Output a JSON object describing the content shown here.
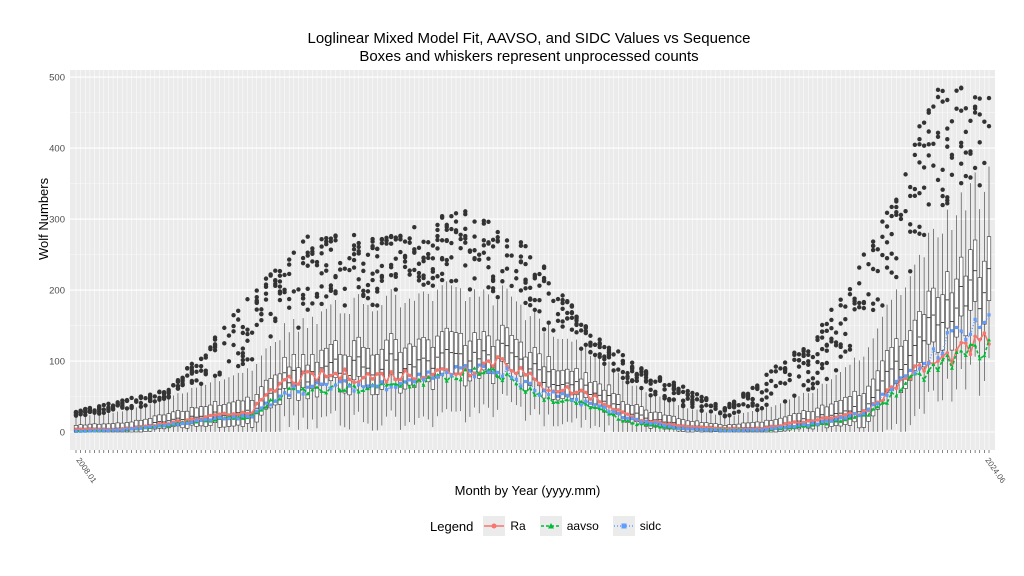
{
  "chart_data": {
    "type": "box",
    "title": "Loglinear Mixed Model Fit, AAVSO, and SIDC Values vs Sequence",
    "subtitle": "Boxes and whiskers represent unprocessed counts",
    "xlabel": "Month by Year (yyyy.mm)",
    "ylabel": "Wolf Numbers",
    "ylim": [
      0,
      510
    ],
    "yticks": [
      0,
      100,
      200,
      300,
      400,
      500
    ],
    "x_range": [
      "2008.01",
      "2024.06"
    ],
    "x_first_tick": "2008.01",
    "x_last_tick": "2024.06",
    "grid": true,
    "legend": {
      "title": "Legend",
      "position": "bottom",
      "items": [
        {
          "name": "Ra",
          "color": "#F8766D",
          "marker": "circle"
        },
        {
          "name": "aavso",
          "color": "#00BA38",
          "marker": "triangle"
        },
        {
          "name": "sidc",
          "color": "#619CFF",
          "marker": "square"
        }
      ]
    },
    "series": [
      {
        "name": "Ra",
        "anchors": [
          [
            0,
            4
          ],
          [
            10,
            4
          ],
          [
            20,
            12
          ],
          [
            30,
            22
          ],
          [
            38,
            30
          ],
          [
            45,
            72
          ],
          [
            55,
            80
          ],
          [
            65,
            78
          ],
          [
            75,
            82
          ],
          [
            85,
            88
          ],
          [
            92,
            105
          ],
          [
            100,
            65
          ],
          [
            110,
            55
          ],
          [
            120,
            20
          ],
          [
            130,
            8
          ],
          [
            140,
            5
          ],
          [
            148,
            5
          ],
          [
            160,
            18
          ],
          [
            170,
            28
          ],
          [
            180,
            82
          ],
          [
            190,
            110
          ],
          [
            197,
            130
          ]
        ]
      },
      {
        "name": "aavso",
        "anchors": [
          [
            0,
            1
          ],
          [
            10,
            3
          ],
          [
            20,
            10
          ],
          [
            30,
            18
          ],
          [
            38,
            22
          ],
          [
            45,
            55
          ],
          [
            55,
            60
          ],
          [
            65,
            62
          ],
          [
            75,
            72
          ],
          [
            85,
            82
          ],
          [
            92,
            80
          ],
          [
            100,
            50
          ],
          [
            110,
            38
          ],
          [
            120,
            12
          ],
          [
            130,
            5
          ],
          [
            140,
            3
          ],
          [
            148,
            3
          ],
          [
            160,
            10
          ],
          [
            170,
            22
          ],
          [
            180,
            70
          ],
          [
            190,
            105
          ],
          [
            197,
            120
          ]
        ]
      },
      {
        "name": "sidc",
        "anchors": [
          [
            0,
            1
          ],
          [
            10,
            3
          ],
          [
            20,
            10
          ],
          [
            30,
            18
          ],
          [
            38,
            22
          ],
          [
            45,
            58
          ],
          [
            55,
            65
          ],
          [
            65,
            65
          ],
          [
            75,
            78
          ],
          [
            85,
            88
          ],
          [
            92,
            85
          ],
          [
            100,
            55
          ],
          [
            110,
            42
          ],
          [
            120,
            18
          ],
          [
            130,
            5
          ],
          [
            140,
            2
          ],
          [
            148,
            3
          ],
          [
            160,
            12
          ],
          [
            170,
            28
          ],
          [
            180,
            80
          ],
          [
            190,
            140
          ],
          [
            197,
            160
          ]
        ]
      }
    ],
    "boxes": {
      "count": 198,
      "median_anchors": [
        [
          0,
          5
        ],
        [
          10,
          5
        ],
        [
          20,
          15
        ],
        [
          30,
          25
        ],
        [
          38,
          30
        ],
        [
          45,
          75
        ],
        [
          55,
          90
        ],
        [
          65,
          95
        ],
        [
          75,
          100
        ],
        [
          85,
          110
        ],
        [
          92,
          110
        ],
        [
          100,
          80
        ],
        [
          110,
          65
        ],
        [
          120,
          25
        ],
        [
          130,
          10
        ],
        [
          140,
          5
        ],
        [
          148,
          6
        ],
        [
          160,
          20
        ],
        [
          170,
          35
        ],
        [
          180,
          120
        ],
        [
          190,
          190
        ],
        [
          197,
          210
        ]
      ],
      "spread_anchors": [
        [
          0,
          10
        ],
        [
          20,
          20
        ],
        [
          40,
          40
        ],
        [
          60,
          55
        ],
        [
          80,
          60
        ],
        [
          100,
          45
        ],
        [
          120,
          25
        ],
        [
          140,
          10
        ],
        [
          160,
          25
        ],
        [
          180,
          70
        ],
        [
          197,
          90
        ]
      ],
      "max_outlier_anchors": [
        [
          0,
          30
        ],
        [
          20,
          60
        ],
        [
          40,
          210
        ],
        [
          50,
          280
        ],
        [
          65,
          280
        ],
        [
          85,
          315
        ],
        [
          100,
          250
        ],
        [
          110,
          150
        ],
        [
          120,
          100
        ],
        [
          140,
          35
        ],
        [
          160,
          140
        ],
        [
          175,
          310
        ],
        [
          185,
          490
        ],
        [
          197,
          480
        ]
      ]
    }
  }
}
